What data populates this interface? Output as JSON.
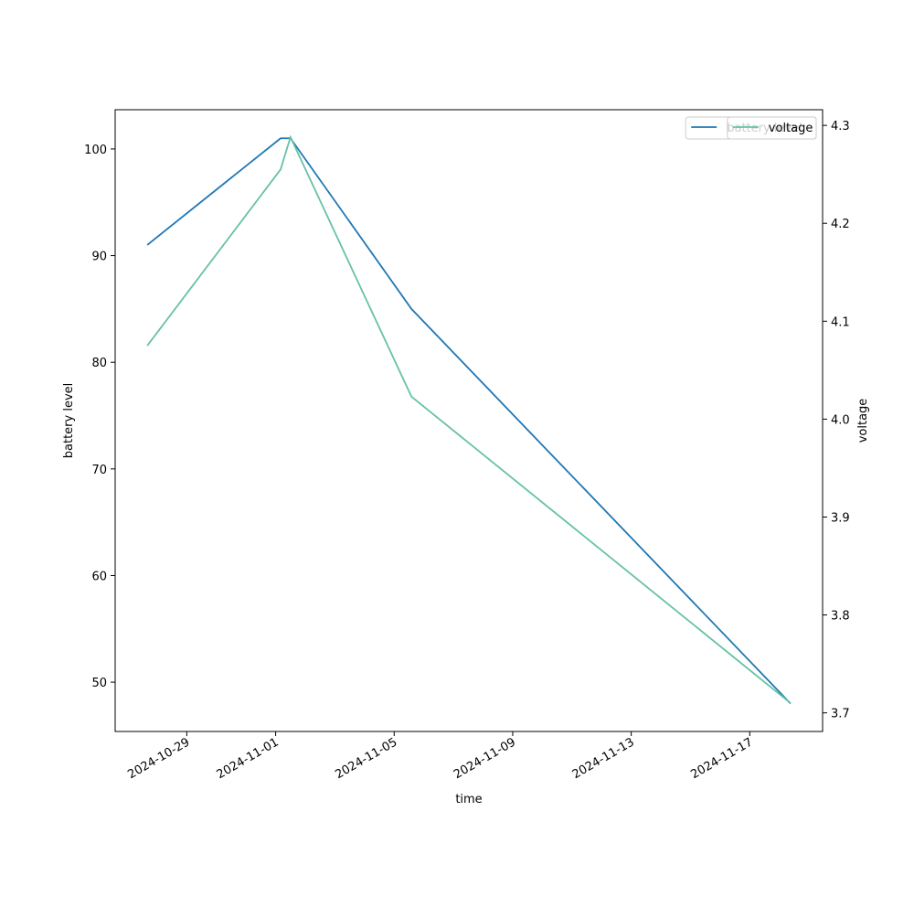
{
  "chart_data": {
    "type": "line",
    "x": [
      "2024-10-27T16:00",
      "2024-11-01T04:00",
      "2024-11-01T12:00",
      "2024-11-05T14:00",
      "2024-11-18T09:00"
    ],
    "series": [
      {
        "name": "battery level",
        "color": "#1f77b4",
        "values": [
          91,
          101,
          101,
          85,
          48
        ]
      },
      {
        "name": "voltage",
        "color": "#66c2a5",
        "axis": "y2",
        "values": [
          4.075,
          4.255,
          4.288,
          4.023,
          3.71
        ]
      }
    ],
    "xlabel": "time",
    "ylabel": "battery level",
    "y2label": "voltage",
    "xlim": [
      "2024-10-26T14:00",
      "2024-11-19T11:00"
    ],
    "xticks": [
      "2024-10-29",
      "2024-11-01",
      "2024-11-05",
      "2024-11-09",
      "2024-11-13",
      "2024-11-17"
    ],
    "ylim": [
      45.38,
      103.68
    ],
    "yticks": [
      50,
      60,
      70,
      80,
      90,
      100
    ],
    "y2lim": [
      3.681,
      4.316
    ],
    "y2ticks": [
      3.7,
      3.8,
      3.9,
      {
        "value": 4.0,
        "label": "4.0"
      },
      4.1,
      4.2,
      4.3
    ],
    "legend": "upper right"
  }
}
